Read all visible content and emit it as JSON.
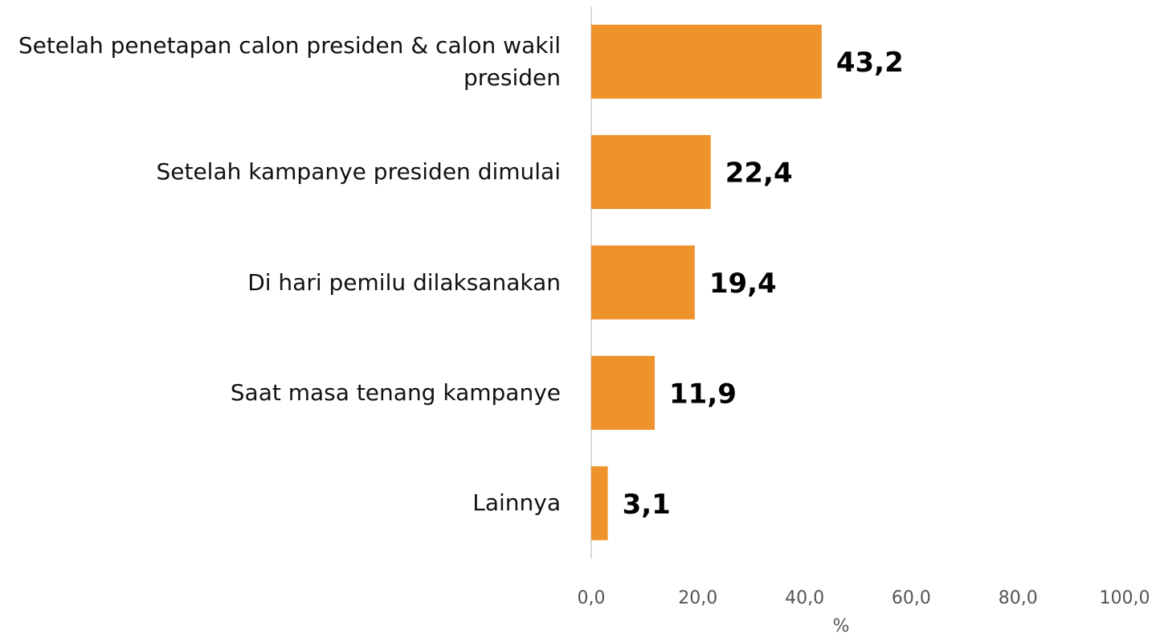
{
  "chart_data": {
    "type": "hbar",
    "categories": [
      "Setelah penetapan calon presiden & calon wakil presiden",
      "Setelah kampanye presiden dimulai",
      "Di hari pemilu dilaksanakan",
      "Saat masa tenang kampanye",
      "Lainnya"
    ],
    "values": [
      43.2,
      22.4,
      19.4,
      11.9,
      3.1
    ],
    "value_labels": [
      "43,2",
      "22,4",
      "19,4",
      "11,9",
      "3,1"
    ],
    "color": "#ee922c",
    "xlabel": "%",
    "xlim": [
      0,
      100
    ],
    "xticks": [
      {
        "value": 0,
        "label": "0,0"
      },
      {
        "value": 20,
        "label": "20,0"
      },
      {
        "value": 40,
        "label": "40,0"
      },
      {
        "value": 60,
        "label": "60,0"
      },
      {
        "value": 80,
        "label": "80,0"
      },
      {
        "value": 100,
        "label": "100,0"
      }
    ],
    "grid": false
  }
}
